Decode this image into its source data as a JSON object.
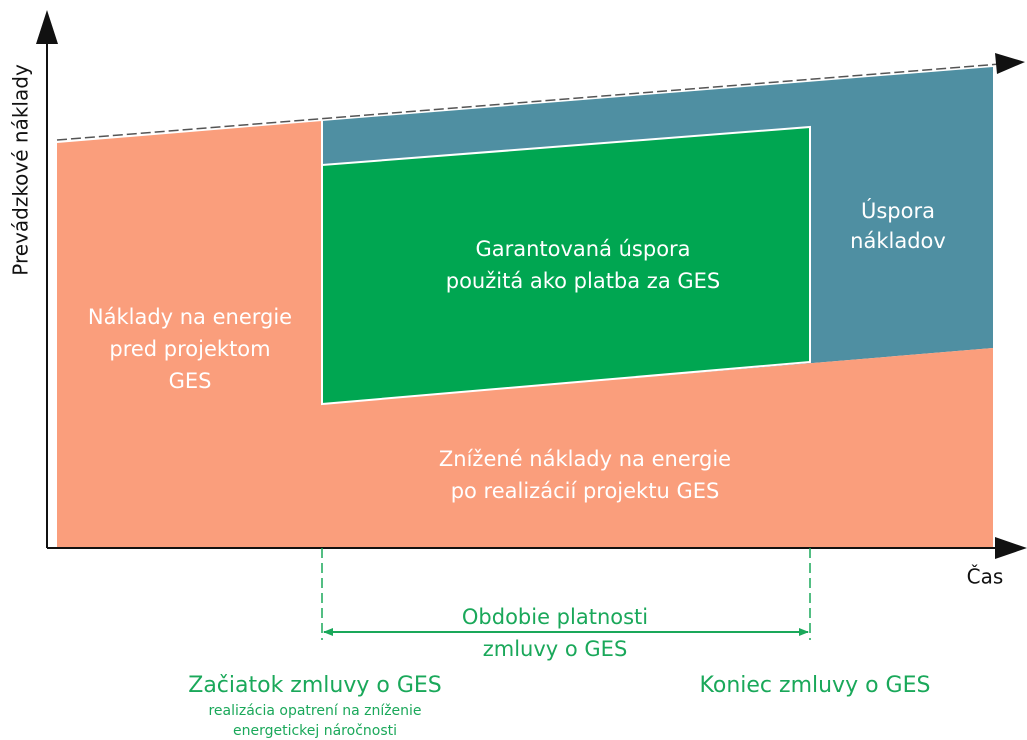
{
  "axes": {
    "y_label": "Prevádzkové náklady",
    "x_label": "Čas"
  },
  "regions": {
    "baseline": [
      "Náklady na energie",
      "pred projektom",
      "GES"
    ],
    "guaranteed": [
      "Garantovaná úspora",
      "použitá ako platba za GES"
    ],
    "savings": [
      "Úspora",
      "nákladov"
    ],
    "reduced": [
      "Znížené náklady na energie",
      "po realizácií projektu GES"
    ]
  },
  "contract": {
    "period": [
      "Obdobie platnosti",
      "zmluvy o GES"
    ],
    "start": "Začiatok zmluvy o GES",
    "start_note": [
      "realizácia opatrení na zníženie",
      "energetickej náročnosti"
    ],
    "end": "Koniec zmluvy o GES"
  }
}
